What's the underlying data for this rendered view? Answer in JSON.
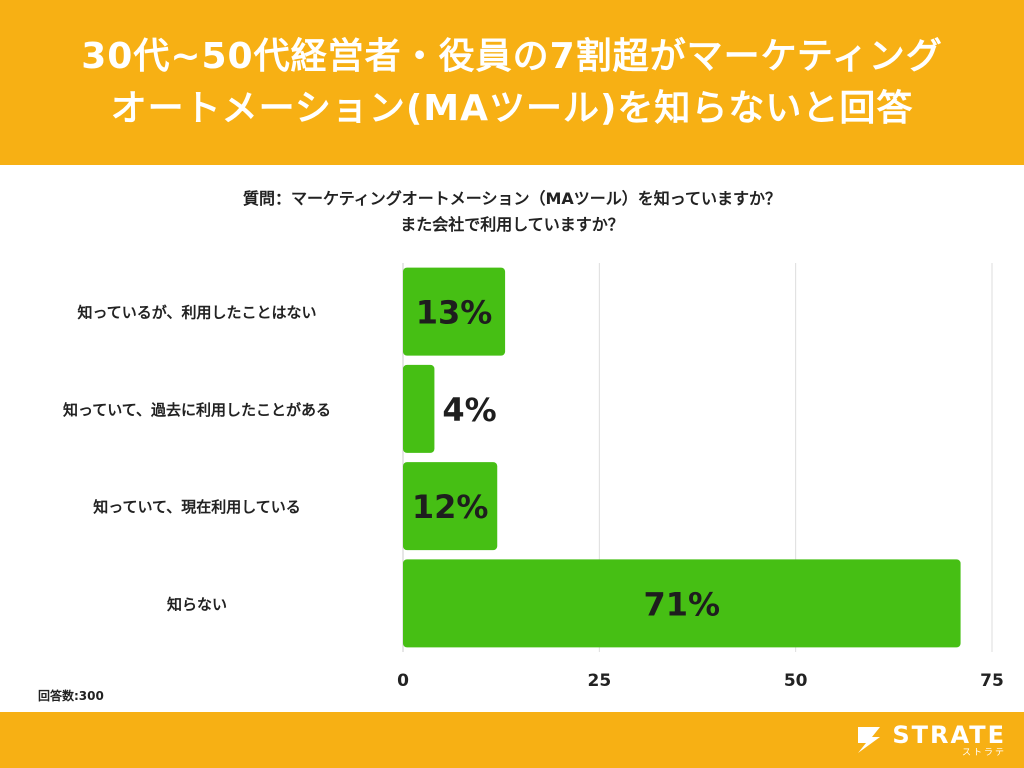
{
  "header": {
    "title_line1": "30代~50代経営者・役員の7割超がマーケティング",
    "title_line2": "オートメーション(MAツール)を知らないと回答"
  },
  "question": {
    "line1": "質問：マーケティングオートメーション（MAツール）を知っていますか？",
    "line2": "また会社で利用していますか？"
  },
  "sample_note": "回答数:300",
  "logo": {
    "name": "STRATE",
    "kana": "ストラテ"
  },
  "colors": {
    "header_bg": "#f7b014",
    "bar": "#46bf14",
    "grid": "#dddddd"
  },
  "chart_data": {
    "type": "bar",
    "orientation": "horizontal",
    "categories": [
      "知っているが、利用したことはない",
      "知っていて、過去に利用したことがある",
      "知っていて、現在利用している",
      "知らない"
    ],
    "values": [
      13,
      4,
      12,
      71
    ],
    "data_labels": [
      "13%",
      "4%",
      "12%",
      "71%"
    ],
    "xlim": [
      0,
      75
    ],
    "xticks": [
      0,
      25,
      50,
      75
    ],
    "grid": true
  }
}
